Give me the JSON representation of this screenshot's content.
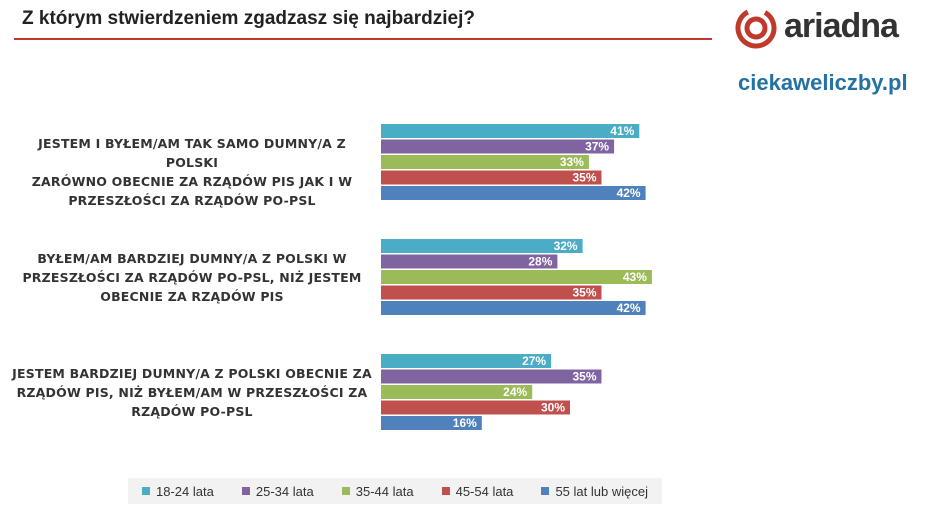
{
  "header": {
    "title": "Z którym stwierdzeniem zgadzasz się najbardziej?",
    "logo_text": "ariadna",
    "site": "ciekaweliczby.pl"
  },
  "colors": {
    "accent": "#c0392b",
    "series": [
      "#4bacc6",
      "#8064a2",
      "#9bbb59",
      "#c0504d",
      "#4f81bd"
    ]
  },
  "chart_data": {
    "type": "bar",
    "orientation": "horizontal",
    "categories": [
      "JESTEM I BYŁEM/AM TAK SAMO DUMNY/A Z POLSKI ZARÓWNO OBECNIE ZA RZĄDÓW PIS JAK I W PRZESZŁOŚCI ZA RZĄDÓW PO-PSL",
      "BYŁEM/AM BARDZIEJ DUMNY/A Z POLSKI W PRZESZŁOŚCI ZA RZĄDÓW PO-PSL, NIŻ JESTEM OBECNIE ZA RZĄDÓW PIS",
      "JESTEM BARDZIEJ DUMNY/A Z POLSKI OBECNIE ZA RZĄDÓW PIS, NIŻ BYŁEM/AM W PRZESZŁOŚCI ZA RZĄDÓW PO-PSL"
    ],
    "category_lines": [
      [
        "JESTEM I BYŁEM/AM TAK SAMO DUMNY/A Z POLSKI",
        "ZARÓWNO OBECNIE ZA RZĄDÓW PIS JAK I W",
        "PRZESZŁOŚCI ZA RZĄDÓW PO-PSL"
      ],
      [
        "BYŁEM/AM BARDZIEJ DUMNY/A Z POLSKI W",
        "PRZESZŁOŚCI ZA RZĄDÓW PO-PSL, NIŻ JESTEM",
        "OBECNIE ZA RZĄDÓW PIS"
      ],
      [
        "JESTEM BARDZIEJ DUMNY/A Z POLSKI OBECNIE ZA",
        "RZĄDÓW PIS, NIŻ BYŁEM/AM W PRZESZŁOŚCI ZA",
        "RZĄDÓW PO-PSL"
      ]
    ],
    "series": [
      {
        "name": "18-24 lata",
        "values": [
          41,
          32,
          27
        ]
      },
      {
        "name": "25-34 lata",
        "values": [
          37,
          28,
          35
        ]
      },
      {
        "name": "35-44 lata",
        "values": [
          33,
          43,
          24
        ]
      },
      {
        "name": "45-54 lata",
        "values": [
          35,
          35,
          30
        ]
      },
      {
        "name": "55 lat lub więcej",
        "values": [
          42,
          42,
          16
        ]
      }
    ],
    "value_suffix": "%",
    "grid": false,
    "legend_position": "bottom"
  }
}
